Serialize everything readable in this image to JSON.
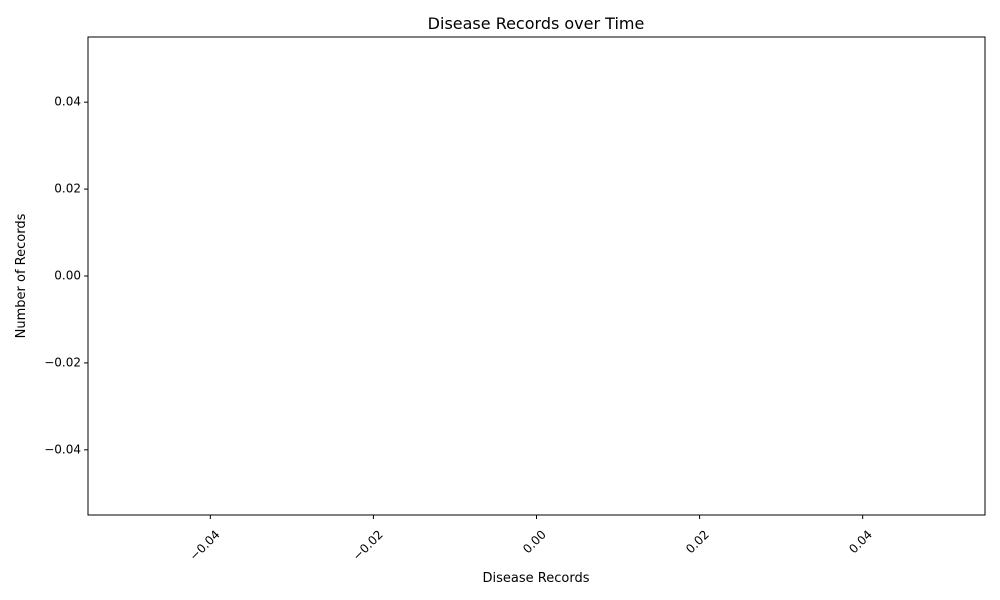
{
  "chart_data": {
    "type": "line",
    "title": "Disease Records over Time",
    "xlabel": "Disease Records",
    "ylabel": "Number of Records",
    "x": [],
    "series": [],
    "xlim": [
      -0.055,
      0.055
    ],
    "ylim": [
      -0.055,
      0.055
    ],
    "xticks": [
      -0.04,
      -0.02,
      0.0,
      0.02,
      0.04
    ],
    "xtick_labels": [
      "−0.04",
      "−0.02",
      "0.00",
      "0.02",
      "0.04"
    ],
    "yticks": [
      -0.04,
      -0.02,
      0.0,
      0.02,
      0.04
    ],
    "ytick_labels": [
      "−0.04",
      "−0.02",
      "0.00",
      "0.02",
      "0.04"
    ],
    "grid": false,
    "legend": "none"
  }
}
